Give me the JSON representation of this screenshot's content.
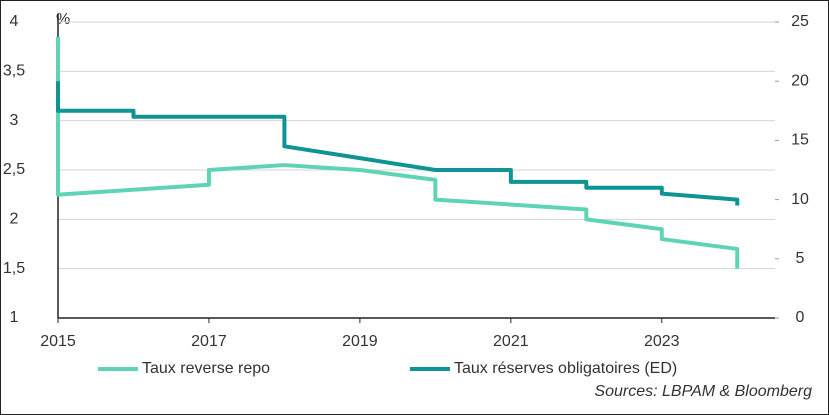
{
  "chart_data": {
    "type": "line",
    "unit_label": "%",
    "source": "Sources: LBPAM & Bloomberg",
    "xlim": [
      2015,
      2024.5
    ],
    "xticks": [
      2015,
      2017,
      2019,
      2021,
      2023
    ],
    "ylim": [
      1,
      4
    ],
    "yticks": [
      1,
      {
        "value": 1.5,
        "label": "1,5"
      },
      2,
      {
        "value": 2.5,
        "label": "2,5"
      },
      3,
      {
        "value": 3.5,
        "label": "3,5"
      },
      4
    ],
    "y2lim": [
      0,
      25
    ],
    "y2ticks": [
      0,
      5,
      10,
      15,
      20,
      25
    ],
    "grid": true,
    "series": [
      {
        "name": "Taux reverse repo",
        "color": "#5fd3b5",
        "x": [
          2015,
          2015,
          2017,
          2017,
          2018,
          2019,
          2020,
          2020,
          2022,
          2022,
          2023,
          2023,
          2024,
          2024
        ],
        "values": [
          3.85,
          2.25,
          2.35,
          2.5,
          2.55,
          2.5,
          2.4,
          2.2,
          2.1,
          2.0,
          1.9,
          1.8,
          1.7,
          1.5
        ]
      },
      {
        "name": "Taux réserves obligatoires (ED)",
        "color": "#0e9494",
        "axis": "y2",
        "x": [
          2015,
          2015,
          2016,
          2016,
          2018,
          2018,
          2019,
          2020,
          2021,
          2021,
          2022,
          2022,
          2023,
          2023,
          2024,
          2024
        ],
        "values": [
          20,
          17.5,
          17.5,
          17,
          17,
          14.5,
          13.5,
          12.5,
          12.5,
          11.5,
          11.5,
          11,
          11,
          10.5,
          10,
          9.5
        ]
      }
    ]
  }
}
